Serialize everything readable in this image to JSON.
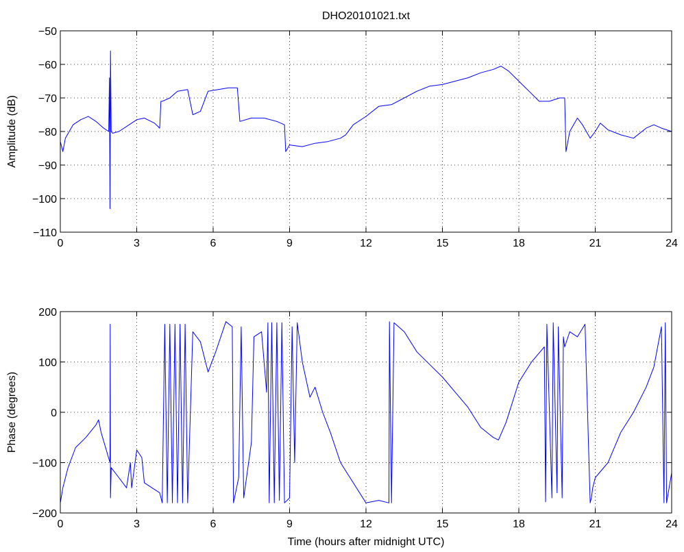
{
  "title": "DHO20101021.txt",
  "colors": {
    "line": "#0000ff",
    "axes": "#000000",
    "grid": "#000000",
    "background": "#ffffff"
  },
  "chart_data": [
    {
      "type": "line",
      "title": "DHO20101021.txt",
      "xlabel": "",
      "ylabel": "Amplitude (dB)",
      "xlim": [
        0,
        24
      ],
      "ylim": [
        -110,
        -50
      ],
      "xticks": [
        0,
        3,
        6,
        9,
        12,
        15,
        18,
        21,
        24
      ],
      "yticks": [
        -110,
        -100,
        -90,
        -80,
        -70,
        -60,
        -50
      ],
      "grid": true,
      "series": [
        {
          "x": [
            0,
            0.1,
            0.2,
            0.5,
            0.8,
            1.1,
            1.4,
            1.7,
            1.9,
            1.93,
            1.95,
            1.97,
            2.0,
            2.05,
            2.3,
            2.7,
            3.0,
            3.3,
            3.7,
            3.9,
            3.95,
            4.0,
            4.3,
            4.6,
            5.0,
            5.2,
            5.5,
            5.8,
            6.2,
            6.6,
            6.95,
            7.05,
            7.5,
            8.0,
            8.5,
            8.8,
            8.85,
            9.0,
            9.5,
            10.0,
            10.5,
            11.0,
            11.2,
            11.5,
            12.0,
            12.5,
            13.0,
            13.5,
            14.0,
            14.5,
            15.0,
            15.5,
            16.0,
            16.5,
            17.0,
            17.3,
            17.6,
            18.0,
            18.4,
            18.8,
            19.2,
            19.6,
            19.8,
            19.85,
            20.0,
            20.3,
            20.5,
            20.8,
            21.0,
            21.2,
            21.5,
            22.0,
            22.5,
            23.0,
            23.3,
            23.6,
            24.0
          ],
          "values": [
            -83,
            -86,
            -82,
            -78,
            -76.5,
            -75.5,
            -77,
            -79,
            -80,
            -64,
            -103,
            -56,
            -80,
            -80.5,
            -80,
            -78,
            -76.5,
            -76,
            -77.5,
            -79,
            -71,
            -71,
            -70,
            -68,
            -67.5,
            -75,
            -74,
            -68,
            -67.5,
            -67,
            -67,
            -77,
            -76,
            -76,
            -77,
            -78,
            -86,
            -84,
            -84.5,
            -83.5,
            -83,
            -82,
            -81,
            -78,
            -75.5,
            -72.5,
            -72,
            -70,
            -68,
            -66.5,
            -66,
            -65,
            -64,
            -62.5,
            -61.5,
            -60.5,
            -62,
            -65,
            -68,
            -71,
            -71,
            -70,
            -70,
            -86,
            -80,
            -76,
            -78,
            -82,
            -80,
            -77.5,
            -79.5,
            -81,
            -82,
            -79,
            -78,
            -79,
            -80
          ]
        }
      ]
    },
    {
      "type": "line",
      "title": "",
      "xlabel": "Time (hours after midnight UTC)",
      "ylabel": "Phase (degrees)",
      "xlim": [
        0,
        24
      ],
      "ylim": [
        -200,
        200
      ],
      "xticks": [
        0,
        3,
        6,
        9,
        12,
        15,
        18,
        21,
        24
      ],
      "yticks": [
        -200,
        -100,
        0,
        100,
        200
      ],
      "grid": true,
      "series": [
        {
          "x": [
            0,
            0.1,
            0.3,
            0.6,
            1.0,
            1.4,
            1.5,
            1.6,
            1.95,
            1.96,
            1.97,
            2.0,
            2.3,
            2.6,
            2.75,
            2.8,
            3.0,
            3.2,
            3.3,
            3.6,
            3.9,
            4.0,
            4.1,
            4.2,
            4.3,
            4.4,
            4.5,
            4.6,
            4.7,
            4.8,
            4.9,
            5.0,
            5.2,
            5.5,
            5.8,
            6.1,
            6.5,
            6.75,
            6.8,
            7.0,
            7.1,
            7.2,
            7.5,
            7.6,
            7.9,
            8.1,
            8.15,
            8.2,
            8.3,
            8.4,
            8.5,
            8.6,
            8.7,
            8.8,
            9.0,
            9.1,
            9.2,
            9.3,
            9.5,
            9.8,
            10.0,
            10.3,
            10.6,
            11.0,
            11.5,
            12.0,
            12.5,
            12.9,
            12.92,
            13.0,
            13.1,
            13.5,
            14.0,
            14.5,
            15.0,
            15.5,
            16.0,
            16.5,
            17.0,
            17.2,
            17.5,
            18.0,
            18.5,
            19.0,
            19.05,
            19.1,
            19.3,
            19.35,
            19.5,
            19.55,
            19.7,
            19.75,
            19.8,
            20.0,
            20.3,
            20.6,
            20.8,
            20.85,
            20.9,
            21.0,
            21.5,
            22.0,
            22.5,
            23.0,
            23.3,
            23.6,
            23.7,
            23.75,
            23.8,
            24.0
          ],
          "values": [
            -180,
            -150,
            -110,
            -70,
            -50,
            -25,
            -15,
            -40,
            -100,
            175,
            -170,
            -110,
            -130,
            -150,
            -100,
            -150,
            -75,
            -90,
            -140,
            -150,
            -160,
            -180,
            175,
            -180,
            175,
            -180,
            175,
            -180,
            175,
            -180,
            175,
            -180,
            160,
            140,
            80,
            120,
            180,
            170,
            -180,
            -130,
            170,
            -170,
            -60,
            150,
            160,
            40,
            178,
            -180,
            178,
            -180,
            178,
            -175,
            178,
            -180,
            -170,
            170,
            -100,
            178,
            100,
            30,
            50,
            0,
            -40,
            -100,
            -140,
            -180,
            -175,
            -180,
            180,
            -180,
            178,
            160,
            120,
            95,
            70,
            40,
            10,
            -30,
            -50,
            -55,
            -20,
            60,
            100,
            130,
            -178,
            175,
            -170,
            178,
            -160,
            170,
            -170,
            150,
            130,
            160,
            150,
            175,
            -180,
            -170,
            -150,
            -130,
            -100,
            -40,
            0,
            50,
            90,
            170,
            -180,
            178,
            -180,
            -120
          ]
        }
      ]
    }
  ]
}
